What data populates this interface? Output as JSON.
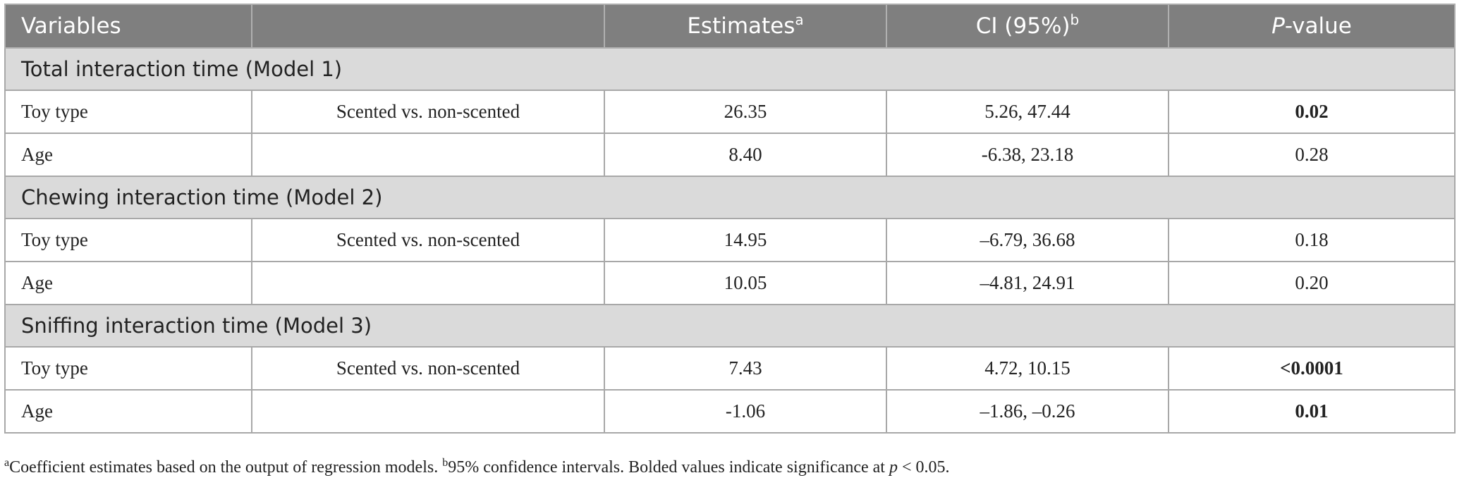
{
  "header": {
    "variables": "Variables",
    "blank": "",
    "estimates": "Estimates",
    "estimates_sup": "a",
    "ci": "CI (95%)",
    "ci_sup": "b",
    "pvalue_italic": "P",
    "pvalue_rest": "-value"
  },
  "sections": [
    {
      "title": "Total interaction time (Model 1)",
      "rows": [
        {
          "variable": "Toy type",
          "comparison": "Scented vs. non-scented",
          "estimate": "26.35",
          "ci": "5.26, 47.44",
          "pvalue": "0.02",
          "bold": true
        },
        {
          "variable": "Age",
          "comparison": "",
          "estimate": "8.40",
          "ci": "-6.38, 23.18",
          "pvalue": "0.28",
          "bold": false
        }
      ]
    },
    {
      "title": "Chewing interaction time (Model 2)",
      "rows": [
        {
          "variable": "Toy type",
          "comparison": "Scented vs. non-scented",
          "estimate": "14.95",
          "ci": "–6.79, 36.68",
          "pvalue": "0.18",
          "bold": false
        },
        {
          "variable": "Age",
          "comparison": "",
          "estimate": "10.05",
          "ci": "–4.81, 24.91",
          "pvalue": "0.20",
          "bold": false
        }
      ]
    },
    {
      "title": "Sniffing interaction time (Model 3)",
      "rows": [
        {
          "variable": "Toy type",
          "comparison": "Scented vs. non-scented",
          "estimate": "7.43",
          "ci": "4.72, 10.15",
          "pvalue": "<0.0001",
          "bold": true
        },
        {
          "variable": "Age",
          "comparison": "",
          "estimate": "-1.06",
          "ci": "–1.86, –0.26",
          "pvalue": "0.01",
          "bold": true
        }
      ]
    }
  ],
  "footnote": {
    "a_mark": "a",
    "a_text": "Coefficient estimates based on the output of regression models. ",
    "b_mark": "b",
    "b_text": "95% confidence intervals. Bolded values indicate significance at ",
    "p_italic": "p",
    "threshold": " < 0.05."
  },
  "colors": {
    "header_bg": "#7f7f7f",
    "section_bg": "#dadada",
    "border": "#a8a8a8"
  }
}
